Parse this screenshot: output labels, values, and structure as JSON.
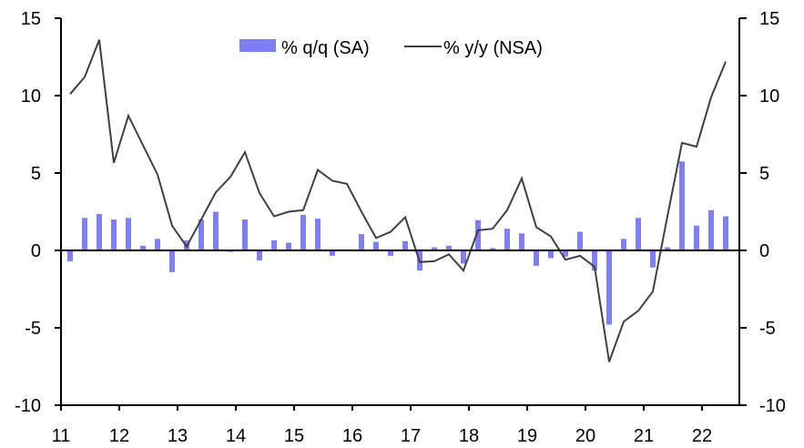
{
  "chart_data": {
    "type": "bar+line",
    "title": "",
    "xlabel": "",
    "ylabel": "",
    "ylim": [
      -10,
      15
    ],
    "y_ticks": [
      15,
      10,
      5,
      0,
      -5,
      -10
    ],
    "y_tick_labels": [
      "15",
      "10",
      "5",
      "0",
      "-5",
      "-10"
    ],
    "y2_tick_labels": [
      "15",
      "10",
      "5",
      "0",
      "-5",
      "-10"
    ],
    "x_ticks": [
      "11",
      "12",
      "13",
      "14",
      "15",
      "16",
      "17",
      "18",
      "19",
      "20",
      "21",
      "22"
    ],
    "x_range": [
      "2011Q1",
      "2022Q2"
    ],
    "legend_position": "top-center",
    "grid": false,
    "periods_per_year": 4,
    "series": [
      {
        "name": "% q/q (SA)",
        "type": "bar",
        "color": "#7e7ef5",
        "values": [
          -0.7,
          2.1,
          2.35,
          2.0,
          2.1,
          0.3,
          0.75,
          -1.4,
          0.65,
          2.0,
          2.5,
          -0.1,
          2.0,
          -0.65,
          0.65,
          0.5,
          2.3,
          2.05,
          -0.35,
          -0.05,
          1.05,
          0.55,
          -0.35,
          0.6,
          -1.3,
          0.2,
          0.3,
          -0.85,
          1.95,
          0.15,
          1.4,
          1.1,
          -1.0,
          -0.5,
          -0.4,
          1.2,
          -1.3,
          -4.8,
          0.75,
          2.1,
          -1.1,
          0.2,
          5.75,
          1.6,
          2.6,
          2.2
        ]
      },
      {
        "name": "% y/y (NSA)",
        "type": "line",
        "color": "#404040",
        "values": [
          10.1,
          11.2,
          13.6,
          5.65,
          8.7,
          6.8,
          4.9,
          1.6,
          0.25,
          2.0,
          3.75,
          4.75,
          6.35,
          3.7,
          2.2,
          2.5,
          2.6,
          5.2,
          4.5,
          4.3,
          2.5,
          0.8,
          1.2,
          2.15,
          -0.75,
          -0.7,
          -0.25,
          -1.3,
          1.3,
          1.4,
          2.6,
          4.65,
          1.5,
          0.9,
          -0.6,
          -0.35,
          -1.05,
          -7.2,
          -4.6,
          -3.9,
          -2.65,
          2.2,
          6.95,
          6.7,
          9.9,
          12.2
        ]
      }
    ]
  }
}
